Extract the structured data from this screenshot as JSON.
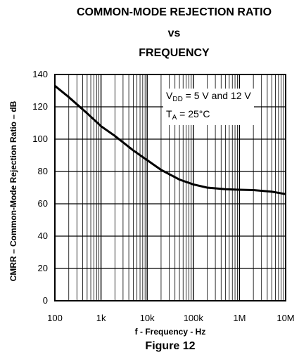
{
  "chart_data": {
    "type": "line",
    "title_lines": [
      "COMMON-MODE REJECTION RATIO",
      "vs",
      "FREQUENCY"
    ],
    "xlabel": "f - Frequency - Hz",
    "ylabel": "CMRR – Common-Mode Rejection Ratio – dB",
    "x_scale": "log",
    "xlim": [
      100,
      10000000
    ],
    "ylim": [
      0,
      140
    ],
    "x_ticks": [
      100,
      1000,
      10000,
      100000,
      1000000,
      10000000
    ],
    "x_tick_labels": [
      "100",
      "1k",
      "10k",
      "100k",
      "1M",
      "10M"
    ],
    "y_ticks": [
      0,
      20,
      40,
      60,
      80,
      100,
      120,
      140
    ],
    "y_tick_labels": [
      "0",
      "20",
      "40",
      "60",
      "80",
      "100",
      "120",
      "140"
    ],
    "grid": true,
    "annotation": {
      "line1_main": "V",
      "line1_sub": "DD",
      "line1_rest": " = 5 V and 12 V",
      "line2_main": "T",
      "line2_sub": "A",
      "line2_rest": " = 25°C"
    },
    "series": [
      {
        "x": [
          100,
          200,
          500,
          1000,
          2000,
          5000,
          10000,
          20000,
          50000,
          100000,
          200000,
          500000,
          1000000,
          2000000,
          5000000,
          10000000
        ],
        "y": [
          133,
          126,
          116,
          108,
          102,
          93,
          87,
          81,
          75,
          72,
          70,
          69,
          68.7,
          68.5,
          67.5,
          66
        ]
      }
    ]
  },
  "figure_label": "Figure 12"
}
